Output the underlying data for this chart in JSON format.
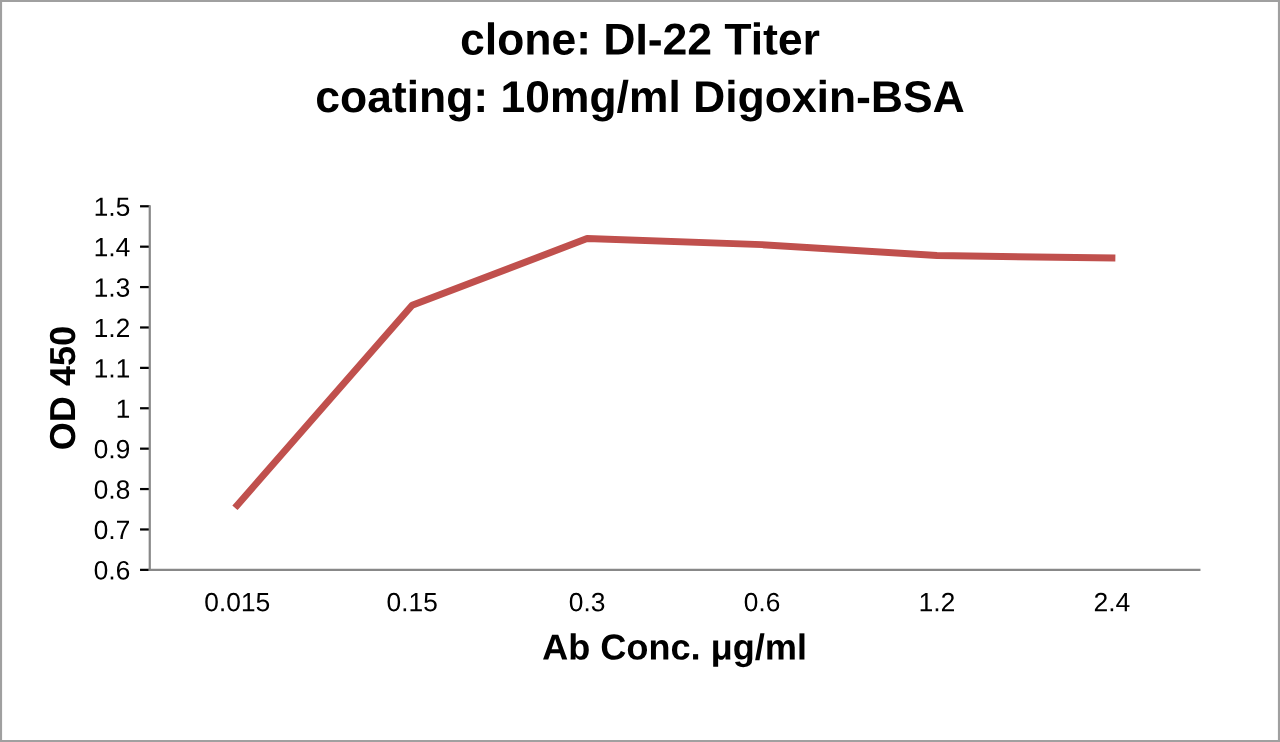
{
  "chart_data": {
    "type": "line",
    "title": "clone: DI-22 Titer\ncoating: 10mg/ml Digoxin-BSA",
    "xlabel": "Ab Conc. μg/ml",
    "ylabel": "OD 450",
    "categories": [
      "0.015",
      "0.15",
      "0.3",
      "0.6",
      "1.2",
      "2.4"
    ],
    "series": [
      {
        "color": "#c0504d",
        "values": [
          0.76,
          1.255,
          1.42,
          1.405,
          1.378,
          1.372
        ]
      }
    ],
    "ylim": [
      0.6,
      1.5
    ],
    "yticks": [
      0.6,
      0.7,
      0.8,
      0.9,
      1,
      1.1,
      1.2,
      1.3,
      1.4,
      1.5
    ],
    "grid": false,
    "marker": "none",
    "line_style": "solid"
  }
}
